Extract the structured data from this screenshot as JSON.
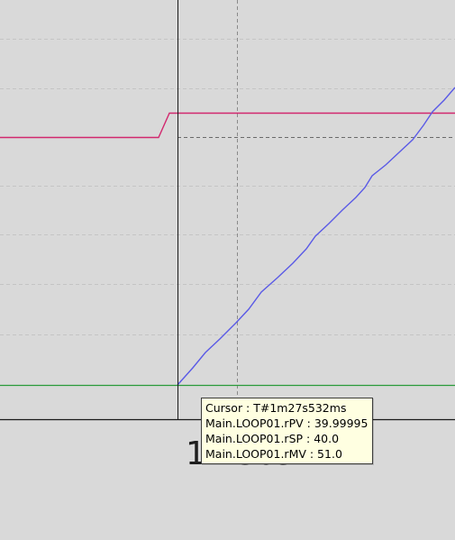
{
  "trend": {
    "time_axis_label": "1m30s",
    "colors": {
      "background": "#d9d9d9",
      "grid": "#c4c4c4",
      "cursor": "#1a1a1a",
      "pv": "#5a5ae6",
      "sp": "#d2286e",
      "mv": "#2a9a3a"
    }
  },
  "tooltip": {
    "cursor": "Cursor : T#1m27s532ms",
    "pv": "Main.LOOP01.rPV : 39.99995",
    "sp": "Main.LOOP01.rSP : 40.0",
    "mv": "Main.LOOP01.rMV : 51.0"
  }
}
